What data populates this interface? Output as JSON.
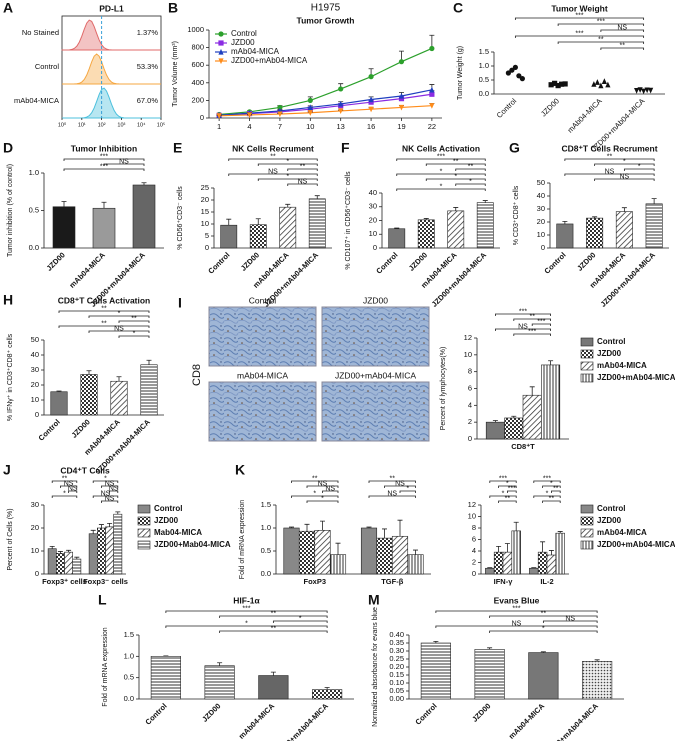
{
  "chart_data": [
    {
      "panel": "A",
      "type": "flow",
      "title": "PD-L1",
      "rows": [
        "No Stained",
        "Control",
        "mAb04-MICA"
      ],
      "values": [
        1.37,
        53.3,
        67.0
      ],
      "value_labels": [
        "1.37%",
        "53.3%",
        "67.0%"
      ],
      "colors": [
        "#e06a6a",
        "#f5a742",
        "#4cc0dd"
      ],
      "xlim": [
        0,
        5
      ],
      "xticks": [
        {
          "value": 0,
          "label": "10⁰"
        },
        {
          "value": 1,
          "label": "10¹"
        },
        {
          "value": 2,
          "label": "10²"
        },
        {
          "value": 3,
          "label": "10³"
        },
        {
          "value": 4,
          "label": "10⁴"
        },
        {
          "value": 5,
          "label": "10⁵"
        }
      ]
    },
    {
      "panel": "B",
      "type": "line",
      "suptitle": "H1975",
      "title": "Tumor Growth",
      "ylabel": "Tumor Volume (mm³)",
      "x": [
        1,
        4,
        7,
        10,
        13,
        16,
        19,
        22
      ],
      "xlim": [
        0,
        23
      ],
      "xticks": [
        1,
        4,
        7,
        10,
        13,
        16,
        19,
        22
      ],
      "ylim": [
        0,
        1000
      ],
      "yticks": [
        0,
        200,
        400,
        600,
        800,
        1000
      ],
      "legend": "upper left",
      "series": [
        {
          "name": "Control",
          "color": "#2ca02c",
          "marker": "circle",
          "values": [
            40,
            70,
            120,
            200,
            330,
            470,
            640,
            790
          ],
          "errors": [
            5,
            10,
            20,
            40,
            60,
            90,
            120,
            150
          ]
        },
        {
          "name": "JZD00",
          "color": "#8a2be2",
          "marker": "square",
          "values": [
            30,
            50,
            70,
            100,
            140,
            180,
            220,
            270
          ],
          "errors": [
            5,
            8,
            10,
            15,
            20,
            25,
            30,
            40
          ]
        },
        {
          "name": "mAb04-MICA",
          "color": "#1f3fbf",
          "marker": "triangle",
          "values": [
            30,
            55,
            80,
            120,
            160,
            210,
            250,
            320
          ],
          "errors": [
            5,
            8,
            12,
            18,
            25,
            30,
            40,
            60
          ]
        },
        {
          "name": "JZD00+mAb04-MICA",
          "color": "#ff8c1a",
          "marker": "triangle-down",
          "values": [
            25,
            35,
            45,
            60,
            80,
            100,
            120,
            140
          ],
          "errors": [
            3,
            5,
            6,
            8,
            10,
            15,
            20,
            25
          ]
        }
      ]
    },
    {
      "panel": "C",
      "type": "strip",
      "title": "Tumor Weight",
      "ylabel": "Tumor Weight (g)",
      "categories": [
        "Control",
        "JZD00",
        "mAb04-MICA",
        "JZD00+mAb04-MICA"
      ],
      "markers": [
        "circle",
        "square",
        "triangle",
        "triangle-down"
      ],
      "color": "#111",
      "points": [
        [
          0.75,
          0.85,
          0.95,
          0.65,
          0.55
        ],
        [
          0.33,
          0.38,
          0.3,
          0.35,
          0.36
        ],
        [
          0.35,
          0.42,
          0.3,
          0.45,
          0.33
        ],
        [
          0.12,
          0.15,
          0.1,
          0.14,
          0.13
        ]
      ],
      "ylim": [
        0,
        1.5
      ],
      "yticks": [
        {
          "value": 0,
          "label": "0.0"
        },
        {
          "value": 0.5,
          "label": "0.5"
        },
        {
          "value": 1,
          "label": "1.0"
        },
        {
          "value": 1.5,
          "label": "1.5"
        }
      ],
      "annotations": [
        "***",
        "***",
        "NS",
        "***",
        "**",
        "**"
      ]
    },
    {
      "panel": "D",
      "type": "bar",
      "title": "Tumor Inhibition",
      "ylabel": "Tumor inhibition (% of control)",
      "categories": [
        "JZD00",
        "mAb04-MICA",
        "JZD00+mAb04-MICA"
      ],
      "values": [
        0.55,
        0.53,
        0.84
      ],
      "errors": [
        0.07,
        0.08,
        0.03
      ],
      "fills": [
        "#1a1a1a",
        "#9a9a9a",
        "#666666"
      ],
      "ylim": [
        0,
        1
      ],
      "yticks": [
        {
          "value": 0,
          "label": "0.0"
        },
        {
          "value": 0.5,
          "label": "0.5"
        },
        {
          "value": 1,
          "label": "1.0"
        }
      ],
      "annotations": [
        "***",
        "NS",
        "***"
      ]
    },
    {
      "panel": "E",
      "type": "bar",
      "title": "NK Cells Recrument",
      "ylabel": "% CD56⁺CD3⁻ cells",
      "categories": [
        "Control",
        "JZD00",
        "mAb04-MICA",
        "JZD00+mAb04-MICA"
      ],
      "values": [
        9.5,
        9.7,
        17,
        20.5
      ],
      "errors": [
        2.5,
        2.5,
        1.2,
        1.3
      ],
      "fills": [
        "#777777",
        "checker",
        "hatch",
        "hlines"
      ],
      "ylim": [
        0,
        25
      ],
      "yticks": [
        0,
        5,
        10,
        15,
        20,
        25
      ],
      "annotations": [
        "**",
        "*",
        "**",
        "NS",
        "*",
        "NS"
      ]
    },
    {
      "panel": "F",
      "type": "bar",
      "title": "NK Cells Activation",
      "ylabel": "% CD107⁺ in CD56⁺CD3⁻ cells",
      "categories": [
        "Control",
        "JZD00",
        "mAb04-MICA",
        "JZD00+mAb04-MICA"
      ],
      "values": [
        14,
        20.5,
        27,
        33
      ],
      "errors": [
        0.5,
        1,
        2.5,
        1.5
      ],
      "fills": [
        "#777777",
        "checker",
        "hatch",
        "hlines"
      ],
      "ylim": [
        0,
        40
      ],
      "yticks": [
        0,
        10,
        20,
        30,
        40
      ],
      "annotations": [
        "***",
        "**",
        "**",
        "*",
        "*",
        "*",
        "*"
      ]
    },
    {
      "panel": "G",
      "type": "bar",
      "title": "CD8⁺T Cells Recrument",
      "ylabel": "% CD3⁺CD8⁺ cells",
      "categories": [
        "Control",
        "JZD00",
        "mAb04-MICA",
        "JZD00+mAb04-MICA"
      ],
      "values": [
        18.5,
        23,
        28,
        34
      ],
      "errors": [
        2,
        1,
        3,
        4
      ],
      "fills": [
        "#777777",
        "checker",
        "hatch",
        "hlines"
      ],
      "ylim": [
        0,
        50
      ],
      "yticks": [
        0,
        10,
        20,
        30,
        40,
        50
      ],
      "annotations": [
        "**",
        "*",
        "*",
        "NS",
        "NS"
      ]
    },
    {
      "panel": "H",
      "type": "bar",
      "title": "CD8⁺T Cells Activation",
      "ylabel": "% IFNγ⁺ in CD3⁺CD8⁺ cells",
      "categories": [
        "Control",
        "JZD00",
        "mAb04-MICA",
        "JZD00+mAb04-MICA"
      ],
      "values": [
        15.5,
        27,
        22.5,
        33.5
      ],
      "errors": [
        0.5,
        2.5,
        3,
        3
      ],
      "fills": [
        "#777777",
        "checker",
        "hatch",
        "hlines"
      ],
      "ylim": [
        0,
        50
      ],
      "yticks": [
        0,
        10,
        20,
        30,
        40,
        50
      ],
      "annotations": [
        "**",
        "*",
        "**",
        "**",
        "NS",
        "*"
      ]
    },
    {
      "panel": "I",
      "type": "ihc",
      "rowlabel": "CD8",
      "labels": [
        "Control",
        "JZD00",
        "mAb04-MICA",
        "JZD00+mAb04-MICA"
      ]
    },
    {
      "type": "bar",
      "ylabel": "Percent of lymphocytes(%)",
      "categories": [
        "CD8⁺T"
      ],
      "legend": "right",
      "series": [
        {
          "name": "Control",
          "fill": "#777777",
          "values": [
            2
          ],
          "errors": [
            0.2
          ]
        },
        {
          "name": "JZD00",
          "fill": "checker",
          "values": [
            2.5
          ],
          "errors": [
            0.2
          ]
        },
        {
          "name": "mAb04-MICA",
          "fill": "hatch",
          "values": [
            5.2
          ],
          "errors": [
            1
          ]
        },
        {
          "name": "JZD00+mAb04-MICA",
          "fill": "vlines",
          "values": [
            8.8
          ],
          "errors": [
            0.5
          ]
        }
      ],
      "ylim": [
        0,
        12
      ],
      "yticks": [
        0,
        2,
        4,
        6,
        8,
        10,
        12
      ],
      "annotations": [
        [
          "***",
          "**",
          "***",
          "NS",
          "***"
        ]
      ]
    },
    {
      "panel": "J",
      "type": "bar",
      "title": "CD4⁺T Cells",
      "ylabel": "Percent of Cells (%)",
      "categories": [
        "Foxp3⁺ cells",
        "Foxp3⁻ cells"
      ],
      "legend": "right",
      "series": [
        {
          "name": "Control",
          "fill": "#888888",
          "values": [
            11,
            17.5
          ],
          "errors": [
            1,
            1.5
          ]
        },
        {
          "name": "JZD00",
          "fill": "checker",
          "values": [
            9,
            20
          ],
          "errors": [
            0.8,
            1.5
          ]
        },
        {
          "name": "Mab04-MICA",
          "fill": "hatch",
          "values": [
            9.5,
            20.5
          ],
          "errors": [
            0.8,
            1.5
          ]
        },
        {
          "name": "JZD00+Mab04-MICA",
          "fill": "hlines",
          "values": [
            6.5,
            26
          ],
          "errors": [
            0.8,
            1
          ]
        }
      ],
      "ylim": [
        0,
        30
      ],
      "yticks": [
        0,
        10,
        20,
        30
      ],
      "annotations": [
        [
          "**",
          "NS",
          "NS",
          "*"
        ],
        [
          "*",
          "NS",
          "NS",
          "NS",
          "NS"
        ]
      ]
    },
    {
      "panel": "K",
      "type": "bar",
      "ylabel": "Fold of mRNA expression",
      "categories": [
        "FoxP3",
        "TGF-β"
      ],
      "series": [
        {
          "fill": "#888888",
          "values": [
            1,
            1
          ],
          "errors": [
            0.02,
            0.02
          ]
        },
        {
          "fill": "checker",
          "values": [
            0.93,
            0.78
          ],
          "errors": [
            0.15,
            0.2
          ]
        },
        {
          "fill": "hatch",
          "values": [
            0.95,
            0.82
          ],
          "errors": [
            0.2,
            0.35
          ]
        },
        {
          "fill": "vlines",
          "values": [
            0.42,
            0.42
          ],
          "errors": [
            0.25,
            0.1
          ]
        }
      ],
      "ylim": [
        0,
        1.5
      ],
      "yticks": [
        {
          "value": 0,
          "label": "0.0"
        },
        {
          "value": 0.5,
          "label": "0.5"
        },
        {
          "value": 1,
          "label": "1.0"
        },
        {
          "value": 1.5,
          "label": "1.5"
        }
      ],
      "annotations": [
        [
          "**",
          "NS",
          "NS",
          "*",
          "*"
        ],
        [
          "**",
          "NS",
          "*",
          "NS"
        ]
      ]
    },
    {
      "type": "bar",
      "categories": [
        "IFN-γ",
        "IL-2"
      ],
      "legend": "right",
      "series": [
        {
          "name": "Control",
          "fill": "#888888",
          "values": [
            1,
            1
          ],
          "errors": [
            0.1,
            0.1
          ]
        },
        {
          "name": "JZD00",
          "fill": "checker",
          "values": [
            3.8,
            3.8
          ],
          "errors": [
            1,
            1.8
          ]
        },
        {
          "name": "mAb04-MICA",
          "fill": "hatch",
          "values": [
            3.8,
            3.3
          ],
          "errors": [
            1.5,
            0.8
          ]
        },
        {
          "name": "JZD00+mAb04-MICA",
          "fill": "vlines",
          "values": [
            7.5,
            7.1
          ],
          "errors": [
            1.5,
            0.3
          ]
        }
      ],
      "ylim": [
        0,
        12
      ],
      "yticks": [
        0,
        2,
        4,
        6,
        8,
        10,
        12
      ],
      "annotations": [
        [
          "***",
          "*",
          "***",
          "*",
          "**"
        ],
        [
          "***",
          "*",
          "**",
          "*",
          "**"
        ]
      ]
    },
    {
      "panel": "L",
      "type": "bar",
      "title": "HIF-1α",
      "ylabel": "Fold of mRNA expression",
      "categories": [
        "Control",
        "JZD00",
        "mAb04-MICA",
        "JZD00+mAb04-MICA"
      ],
      "values": [
        1,
        0.78,
        0.55,
        0.22
      ],
      "errors": [
        0.01,
        0.07,
        0.08,
        0.05
      ],
      "fills": [
        "hlines",
        "hlines",
        "#666666",
        "checker"
      ],
      "ylim": [
        0,
        1.5
      ],
      "yticks": [
        {
          "value": 0,
          "label": "0.0"
        },
        {
          "value": 0.5,
          "label": "0.5"
        },
        {
          "value": 1,
          "label": "1.0"
        },
        {
          "value": 1.5,
          "label": "1.5"
        }
      ],
      "annotations": [
        "***",
        "**",
        "*",
        "*",
        "**"
      ]
    },
    {
      "panel": "M",
      "type": "bar",
      "title": "Evans Blue",
      "ylabel": "Normalized absorbance for evans blue",
      "categories": [
        "Control",
        "JZD00",
        "mAb04-MICA",
        "JZD00+mAb04-MICA"
      ],
      "values": [
        0.35,
        0.31,
        0.29,
        0.235
      ],
      "errors": [
        0.01,
        0.01,
        0.005,
        0.01
      ],
      "fills": [
        "hlines",
        "hlines",
        "#777777",
        "dots"
      ],
      "ylim": [
        0,
        0.4
      ],
      "yticks": [
        {
          "value": 0,
          "label": "0.00"
        },
        {
          "value": 0.05,
          "label": "0.05"
        },
        {
          "value": 0.1,
          "label": "0.10"
        },
        {
          "value": 0.15,
          "label": "0.15"
        },
        {
          "value": 0.2,
          "label": "0.20"
        },
        {
          "value": 0.25,
          "label": "0.25"
        },
        {
          "value": 0.3,
          "label": "0.30"
        },
        {
          "value": 0.35,
          "label": "0.35"
        },
        {
          "value": 0.4,
          "label": "0.40"
        }
      ],
      "annotations": [
        "***",
        "**",
        "NS",
        "NS",
        "*"
      ]
    }
  ]
}
